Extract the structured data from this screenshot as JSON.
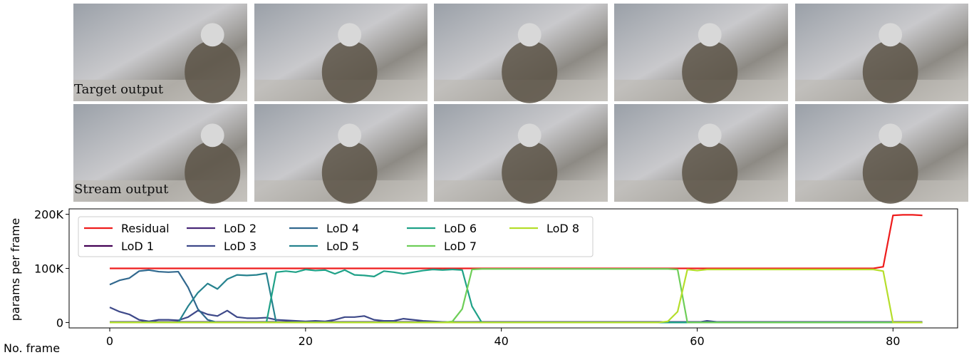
{
  "panels": {
    "row_labels": [
      "Target output",
      "Stream output"
    ]
  },
  "chart_data": {
    "type": "line",
    "xlabel": "No. frame",
    "ylabel": "params per frame",
    "x": [
      0,
      1,
      2,
      3,
      4,
      5,
      6,
      7,
      8,
      9,
      10,
      11,
      12,
      13,
      14,
      15,
      16,
      17,
      18,
      19,
      20,
      21,
      22,
      23,
      24,
      25,
      26,
      27,
      28,
      29,
      30,
      31,
      32,
      33,
      34,
      35,
      36,
      37,
      38,
      39,
      40,
      41,
      42,
      43,
      44,
      45,
      46,
      47,
      48,
      49,
      50,
      51,
      52,
      53,
      54,
      55,
      56,
      57,
      58,
      59,
      60,
      61,
      62,
      63,
      64,
      65,
      66,
      67,
      68,
      69,
      70,
      71,
      72,
      73,
      74,
      75,
      76,
      77,
      78,
      79,
      80,
      81,
      82,
      83
    ],
    "xlim": [
      -4.15,
      86.6
    ],
    "xticks": [
      0,
      20,
      40,
      60,
      80
    ],
    "ylim": [
      -10000,
      210000
    ],
    "yticks": [
      0,
      {
        "value": 100000,
        "label": "100K"
      },
      {
        "value": 200000,
        "label": "200K"
      }
    ],
    "legend": "upper left",
    "series": [
      {
        "name": "Residual",
        "color": "#ee1c1c",
        "values": [
          100000,
          100000,
          100000,
          100000,
          100000,
          100000,
          100000,
          100000,
          100000,
          100000,
          100000,
          100000,
          100000,
          100000,
          100000,
          100000,
          100000,
          100000,
          100000,
          100000,
          100000,
          100000,
          100000,
          100000,
          100000,
          100000,
          100000,
          100000,
          100000,
          100000,
          100000,
          100000,
          100000,
          100000,
          100000,
          100000,
          100000,
          100000,
          100000,
          100000,
          100000,
          100000,
          100000,
          100000,
          100000,
          100000,
          100000,
          100000,
          100000,
          100000,
          100000,
          100000,
          100000,
          100000,
          100000,
          100000,
          100000,
          100000,
          100000,
          100000,
          100000,
          100000,
          100000,
          100000,
          100000,
          100000,
          100000,
          100000,
          100000,
          100000,
          100000,
          100000,
          100000,
          100000,
          100000,
          100000,
          100000,
          100000,
          100000,
          103000,
          198000,
          199000,
          199000,
          198000
        ]
      },
      {
        "name": "LoD 1",
        "color": "#440154",
        "values": [
          0,
          0,
          0,
          0,
          0,
          0,
          0,
          0,
          0,
          0,
          0,
          0,
          0,
          0,
          0,
          0,
          0,
          0,
          0,
          0,
          0,
          0,
          0,
          0,
          0,
          0,
          0,
          0,
          0,
          0,
          0,
          0,
          0,
          0,
          0,
          0,
          0,
          0,
          0,
          0,
          0,
          0,
          0,
          0,
          0,
          0,
          0,
          0,
          0,
          0,
          0,
          0,
          0,
          0,
          0,
          0,
          0,
          0,
          0,
          0,
          0,
          0,
          0,
          0,
          0,
          0,
          0,
          0,
          0,
          0,
          0,
          0,
          0,
          0,
          0,
          0,
          0,
          0,
          0,
          0,
          0,
          0,
          0,
          0
        ]
      },
      {
        "name": "LoD 2",
        "color": "#482878",
        "values": [
          1000,
          1000,
          1000,
          1000,
          1000,
          1000,
          1000,
          1000,
          1000,
          1000,
          1000,
          1000,
          1000,
          1000,
          1000,
          1000,
          1000,
          1000,
          1000,
          1000,
          1000,
          1000,
          1000,
          1000,
          1000,
          1000,
          1000,
          1000,
          1000,
          1000,
          1000,
          1000,
          1000,
          1000,
          1000,
          1000,
          1000,
          1000,
          1000,
          1000,
          1000,
          1000,
          1000,
          1000,
          1000,
          1000,
          1000,
          1000,
          1000,
          1000,
          1000,
          1000,
          1000,
          1000,
          1000,
          1000,
          1000,
          1000,
          1000,
          1000,
          1000,
          1000,
          1000,
          1000,
          1000,
          1000,
          1000,
          1000,
          1000,
          1000,
          1000,
          1000,
          1000,
          1000,
          1000,
          1000,
          1000,
          1000,
          1000,
          1000,
          1000,
          1000,
          1000,
          1000
        ]
      },
      {
        "name": "LoD 3",
        "color": "#3e4989",
        "values": [
          28000,
          20000,
          15000,
          5000,
          2000,
          5000,
          5000,
          4000,
          10000,
          22000,
          15000,
          12000,
          22000,
          10000,
          8000,
          8000,
          9000,
          5000,
          4000,
          3000,
          2000,
          3000,
          2000,
          5000,
          10000,
          10000,
          12000,
          5000,
          3000,
          3000,
          7000,
          5000,
          3000,
          2000,
          1000,
          1000,
          1000,
          1000,
          0,
          0,
          0,
          0,
          0,
          0,
          0,
          0,
          0,
          0,
          0,
          0,
          0,
          0,
          0,
          0,
          0,
          0,
          0,
          0,
          0,
          0,
          0,
          3000,
          1000,
          0,
          0,
          0,
          0,
          0,
          0,
          0,
          0,
          0,
          0,
          0,
          0,
          0,
          0,
          0,
          0,
          0,
          0,
          0,
          0,
          0
        ]
      },
      {
        "name": "LoD 4",
        "color": "#31688e",
        "values": [
          70000,
          78000,
          82000,
          95000,
          97000,
          94000,
          93000,
          94000,
          65000,
          25000,
          5000,
          0,
          0,
          0,
          0,
          0,
          0,
          0,
          0,
          0,
          0,
          0,
          0,
          0,
          0,
          0,
          0,
          0,
          0,
          0,
          0,
          0,
          0,
          0,
          0,
          0,
          0,
          0,
          0,
          0,
          0,
          0,
          0,
          0,
          0,
          0,
          0,
          0,
          0,
          0,
          0,
          0,
          0,
          0,
          0,
          0,
          0,
          0,
          0,
          0,
          0,
          0,
          0,
          0,
          0,
          0,
          0,
          0,
          0,
          0,
          0,
          0,
          0,
          0,
          0,
          0,
          0,
          0,
          0,
          0,
          0,
          0,
          0,
          0
        ]
      },
      {
        "name": "LoD 5",
        "color": "#26828e",
        "values": [
          0,
          0,
          0,
          0,
          0,
          0,
          0,
          0,
          30000,
          55000,
          72000,
          62000,
          80000,
          88000,
          87000,
          88000,
          91000,
          0,
          0,
          0,
          0,
          0,
          0,
          0,
          0,
          0,
          0,
          0,
          0,
          0,
          0,
          0,
          0,
          0,
          0,
          0,
          0,
          0,
          0,
          0,
          0,
          0,
          0,
          0,
          0,
          0,
          0,
          0,
          0,
          0,
          0,
          0,
          0,
          0,
          0,
          0,
          0,
          0,
          0,
          0,
          0,
          0,
          0,
          0,
          0,
          0,
          0,
          0,
          0,
          0,
          0,
          0,
          0,
          0,
          0,
          0,
          0,
          0,
          0,
          0,
          0,
          0,
          0,
          0
        ]
      },
      {
        "name": "LoD 6",
        "color": "#1fa187",
        "values": [
          0,
          0,
          0,
          0,
          0,
          0,
          0,
          0,
          0,
          0,
          0,
          0,
          0,
          0,
          0,
          0,
          0,
          93000,
          95000,
          93000,
          98000,
          96000,
          97000,
          90000,
          97000,
          88000,
          87000,
          85000,
          95000,
          93000,
          90000,
          93000,
          96000,
          98000,
          97000,
          98000,
          97000,
          30000,
          0,
          0,
          0,
          0,
          0,
          0,
          0,
          0,
          0,
          0,
          0,
          0,
          0,
          0,
          0,
          0,
          0,
          0,
          0,
          0,
          0,
          0,
          0,
          0,
          0,
          0,
          0,
          0,
          0,
          0,
          0,
          0,
          0,
          0,
          0,
          0,
          0,
          0,
          0,
          0,
          0,
          0,
          0,
          0,
          0,
          0
        ]
      },
      {
        "name": "LoD 7",
        "color": "#6ece58",
        "values": [
          0,
          0,
          0,
          0,
          0,
          0,
          0,
          0,
          0,
          0,
          0,
          0,
          0,
          0,
          0,
          0,
          0,
          0,
          0,
          0,
          0,
          0,
          0,
          0,
          0,
          0,
          0,
          0,
          0,
          0,
          0,
          0,
          0,
          0,
          0,
          2000,
          25000,
          98000,
          99000,
          99000,
          99000,
          99000,
          99000,
          99000,
          99000,
          99000,
          99000,
          99000,
          99000,
          99000,
          99000,
          99000,
          99000,
          99000,
          99000,
          99000,
          99000,
          99000,
          98000,
          0,
          0,
          0,
          0,
          0,
          0,
          0,
          0,
          0,
          0,
          0,
          0,
          0,
          0,
          0,
          0,
          0,
          0,
          0,
          0,
          0,
          0,
          0,
          0,
          0
        ]
      },
      {
        "name": "LoD 8",
        "color": "#b5de2b",
        "values": [
          0,
          0,
          0,
          0,
          0,
          0,
          0,
          0,
          0,
          0,
          0,
          0,
          0,
          0,
          0,
          0,
          0,
          0,
          0,
          0,
          0,
          0,
          0,
          0,
          0,
          0,
          0,
          0,
          0,
          0,
          0,
          0,
          0,
          0,
          0,
          0,
          0,
          0,
          0,
          0,
          0,
          0,
          0,
          0,
          0,
          0,
          0,
          0,
          0,
          0,
          0,
          0,
          0,
          0,
          0,
          0,
          0,
          2000,
          20000,
          98000,
          96000,
          98000,
          98000,
          98000,
          98000,
          98000,
          98000,
          98000,
          98000,
          98000,
          98000,
          98000,
          98000,
          98000,
          98000,
          98000,
          98000,
          98000,
          98000,
          95000,
          0,
          0,
          0,
          0
        ]
      }
    ]
  }
}
